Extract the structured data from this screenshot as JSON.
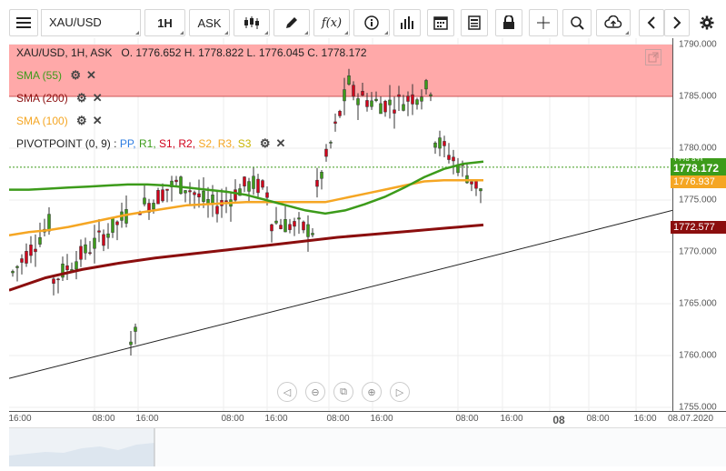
{
  "toolbar": {
    "menu_icon": "hamburger-icon",
    "symbol": "XAU/USD",
    "timeframe": "1H",
    "price_type": "ASK",
    "icons": [
      "candlestick-icon",
      "pencil-icon",
      "fx-icon",
      "info-icon",
      "bar-chart-icon",
      "calendar-icon",
      "document-icon",
      "lock-icon",
      "crosshair-icon",
      "zoom-icon",
      "cloud-upload-icon",
      "chevron-left-icon",
      "chevron-right-icon",
      "gear-icon"
    ]
  },
  "header": {
    "ohlc": "XAU/USD, 1H, ASK   O. 1776.652 H. 1778.822 L. 1776.045 C. 1778.172"
  },
  "indicators": [
    {
      "label": "SMA (55)",
      "color": "#3c9b1a"
    },
    {
      "label": "SMA (200)",
      "color": "#8b0e0e"
    },
    {
      "label": "SMA (100)",
      "color": "#f5a623"
    }
  ],
  "pivot": {
    "label": "PIVOTPOINT (0, 9)",
    "sep": ":",
    "items": [
      {
        "text": "PP,",
        "color": "#2e7de1"
      },
      {
        "text": "R1,",
        "color": "#3c9b1a"
      },
      {
        "text": "S1,",
        "color": "#d0021b"
      },
      {
        "text": "R2,",
        "color": "#d0021b"
      },
      {
        "text": "S2,",
        "color": "#f5a623"
      },
      {
        "text": "R3,",
        "color": "#f5a623"
      },
      {
        "text": "S3",
        "color": "#c8b400"
      }
    ]
  },
  "price_axis": {
    "labels": [
      "1790.000",
      "1785.000",
      "1780.000",
      "1775.000",
      "1770.000",
      "1765.000",
      "1760.000",
      "1755.000"
    ],
    "last_price": "1778.172",
    "above_last": "1778.871",
    "sma100_value": "1776.937",
    "sma200_value": "1772.577"
  },
  "time_axis": {
    "labels": [
      "16:00",
      "08:00",
      "16:00",
      "08:00",
      "16:00",
      "08:00",
      "16:00",
      "08:00",
      "16:00",
      "08",
      "08:00",
      "16:00",
      "08.07.2020"
    ]
  },
  "navigation": [
    "back-icon",
    "zoom-out-icon",
    "reset-icon",
    "zoom-in-icon",
    "forward-icon"
  ],
  "colors": {
    "bull": "#3c9b1a",
    "bear": "#d0021b",
    "resistance_zone": "#ffa4a4",
    "sma55": "#3c9b1a",
    "sma100": "#f5a623",
    "sma200": "#8b0e0e"
  },
  "chart_data": {
    "type": "candlestick",
    "ylim": [
      1755,
      1790
    ],
    "sma55": [
      1776.0,
      1776.0,
      1776.1,
      1776.2,
      1776.3,
      1776.4,
      1776.5,
      1776.5,
      1776.4,
      1776.2,
      1776.0,
      1775.8,
      1775.5,
      1775.0,
      1774.5,
      1774.0,
      1773.7,
      1774.0,
      1774.6,
      1775.3,
      1776.2,
      1777.2,
      1778.0,
      1778.5,
      1778.7
    ],
    "sma100": [
      1771.6,
      1771.9,
      1772.1,
      1772.4,
      1772.8,
      1773.2,
      1773.6,
      1773.9,
      1774.2,
      1774.5,
      1774.6,
      1774.7,
      1774.8,
      1774.8,
      1774.8,
      1774.8,
      1774.8,
      1775.2,
      1775.6,
      1776.0,
      1776.4,
      1776.8,
      1776.9,
      1776.9,
      1776.9
    ],
    "sma200": [
      1766.3,
      1767.5,
      1768.3,
      1768.9,
      1769.4,
      1769.8,
      1770.2,
      1770.6,
      1771.0,
      1771.4,
      1771.7,
      1772.0,
      1772.3,
      1772.6
    ],
    "resistance": [
      1785.0,
      1790.0
    ],
    "trendline": [
      1757.8,
      1774.0
    ]
  }
}
